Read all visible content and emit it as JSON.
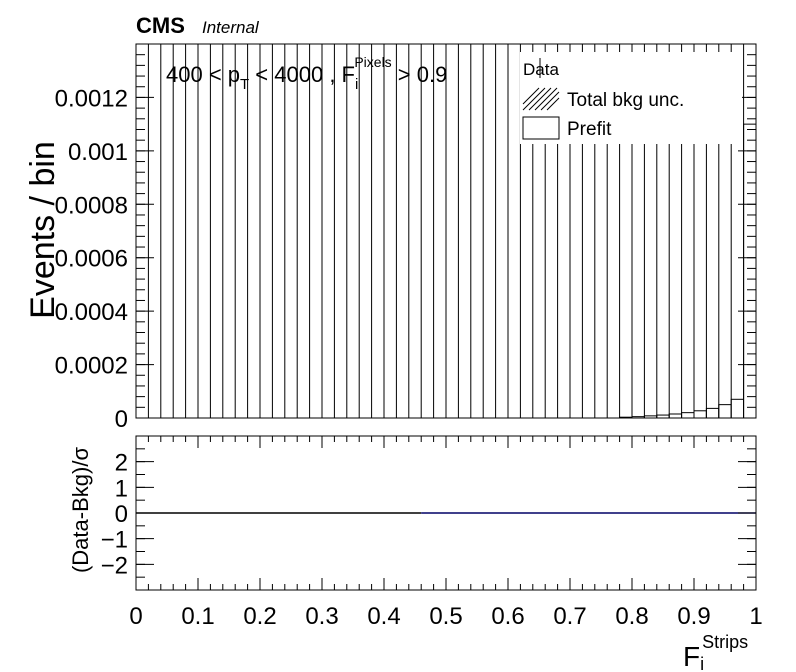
{
  "header": {
    "experiment": "CMS",
    "status": "Internal"
  },
  "chart_data": [
    {
      "type": "bar",
      "panel": "main",
      "ylabel": "Events / bin",
      "ylim": [
        0,
        0.0014
      ],
      "yticks": [
        0,
        0.0002,
        0.0004,
        0.0006,
        0.0008,
        0.001,
        0.0012
      ],
      "ytick_labels": [
        "0",
        "0.0002",
        "0.0004",
        "0.0006",
        "0.0008",
        "0.001",
        "0.0012"
      ],
      "xlim": [
        0,
        1
      ],
      "bin_edges_count": 50,
      "grid": false,
      "annotation": {
        "pre": "400 < p",
        "sub1": "T",
        "mid": " < 4000 , F",
        "sub2": "i",
        "sup2": "Pixels",
        "post": " > 0.9"
      },
      "legend": {
        "placement": "top-right",
        "entries": [
          {
            "label": "Data",
            "style": "marker"
          },
          {
            "label": "Total bkg unc.",
            "style": "hatched"
          },
          {
            "label": "Prefit",
            "style": "box"
          }
        ]
      },
      "series": [
        {
          "name": "Prefit",
          "values": [
            0,
            0,
            0,
            0,
            0,
            0,
            0,
            0,
            0,
            0,
            0,
            0,
            0,
            0,
            0,
            0,
            0,
            0,
            0,
            0,
            0,
            0,
            0,
            0,
            0,
            0,
            0,
            0,
            0,
            0,
            0,
            0,
            0,
            0,
            0,
            0,
            0,
            0,
            0,
            3e-06,
            5e-06,
            8e-06,
            1.1e-05,
            1.5e-05,
            2e-05,
            2.7e-05,
            3.6e-05,
            5e-05,
            7e-05,
            0.0011
          ]
        }
      ]
    },
    {
      "type": "line",
      "panel": "ratio",
      "ylabel": "(Data-Bkg)/σ",
      "ylim": [
        -3,
        3
      ],
      "yticks": [
        -2,
        -1,
        0,
        1,
        2
      ],
      "ytick_labels": [
        "−2",
        "−1",
        "0",
        "1",
        "2"
      ],
      "xlabel_main": "F",
      "xlabel_sub": "i",
      "xlabel_sup": "Strips",
      "xlim": [
        0,
        1
      ],
      "xticks": [
        0,
        0.1,
        0.2,
        0.3,
        0.4,
        0.5,
        0.6,
        0.7,
        0.8,
        0.9,
        1
      ],
      "xtick_labels": [
        "0",
        "0.1",
        "0.2",
        "0.3",
        "0.4",
        "0.5",
        "0.6",
        "0.7",
        "0.8",
        "0.9",
        "1"
      ],
      "series": [
        {
          "x": [
            0.0,
            0.46
          ],
          "y": [
            0,
            0
          ],
          "color": "#000000"
        },
        {
          "x": [
            0.46,
            1.0
          ],
          "y": [
            0,
            0
          ],
          "color": "#000066"
        }
      ]
    }
  ]
}
